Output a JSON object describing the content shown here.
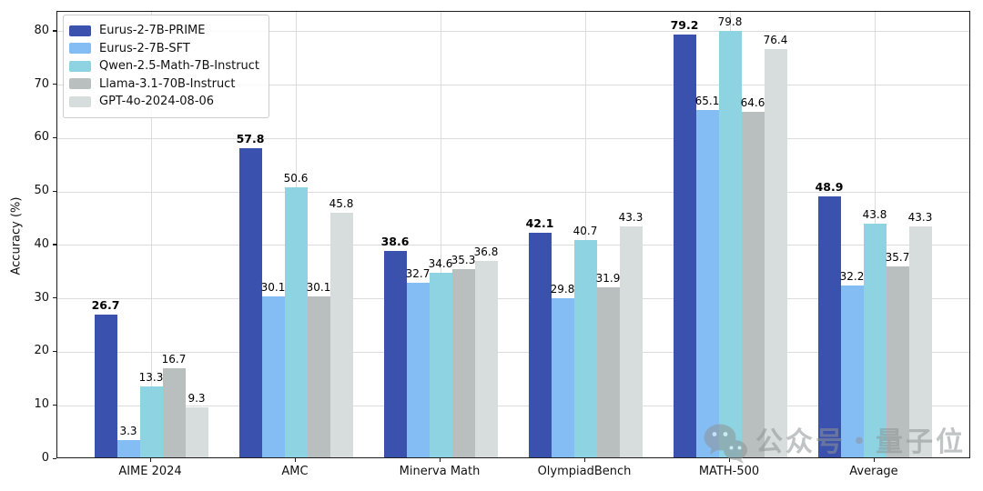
{
  "chart_data": {
    "type": "bar",
    "title": "",
    "xlabel": "",
    "ylabel": "Accuracy (%)",
    "ylim": [
      0,
      83.7
    ],
    "yticks": [
      0,
      10,
      20,
      30,
      40,
      50,
      60,
      70,
      80
    ],
    "grid": "both",
    "legend_position": "upper-left",
    "value_labels_shown": true,
    "categories": [
      "AIME 2024",
      "AMC",
      "Minerva Math",
      "OlympiadBench",
      "MATH-500",
      "Average"
    ],
    "series": [
      {
        "name": "Eurus-2-7B-PRIME",
        "color": "#3a51ad",
        "bold_labels": true,
        "values": [
          26.7,
          57.8,
          38.6,
          42.1,
          79.2,
          48.9
        ]
      },
      {
        "name": "Eurus-2-7B-SFT",
        "color": "#84bcf4",
        "bold_labels": false,
        "values": [
          3.3,
          30.1,
          32.7,
          29.8,
          65.1,
          32.2
        ]
      },
      {
        "name": "Qwen-2.5-Math-7B-Instruct",
        "color": "#8dd3e2",
        "bold_labels": false,
        "values": [
          13.3,
          50.6,
          34.6,
          40.7,
          79.8,
          43.8
        ]
      },
      {
        "name": "Llama-3.1-70B-Instruct",
        "color": "#b9bfbf",
        "bold_labels": false,
        "values": [
          16.7,
          30.1,
          35.3,
          31.9,
          64.6,
          35.7
        ]
      },
      {
        "name": "GPT-4o-2024-08-06",
        "color": "#d7dddd",
        "bold_labels": false,
        "values": [
          9.3,
          45.8,
          36.8,
          43.3,
          76.4,
          43.3
        ]
      }
    ]
  },
  "watermark": {
    "text": "公众号・量子位",
    "icon": "wechat-icon",
    "color": "#8e9494"
  }
}
